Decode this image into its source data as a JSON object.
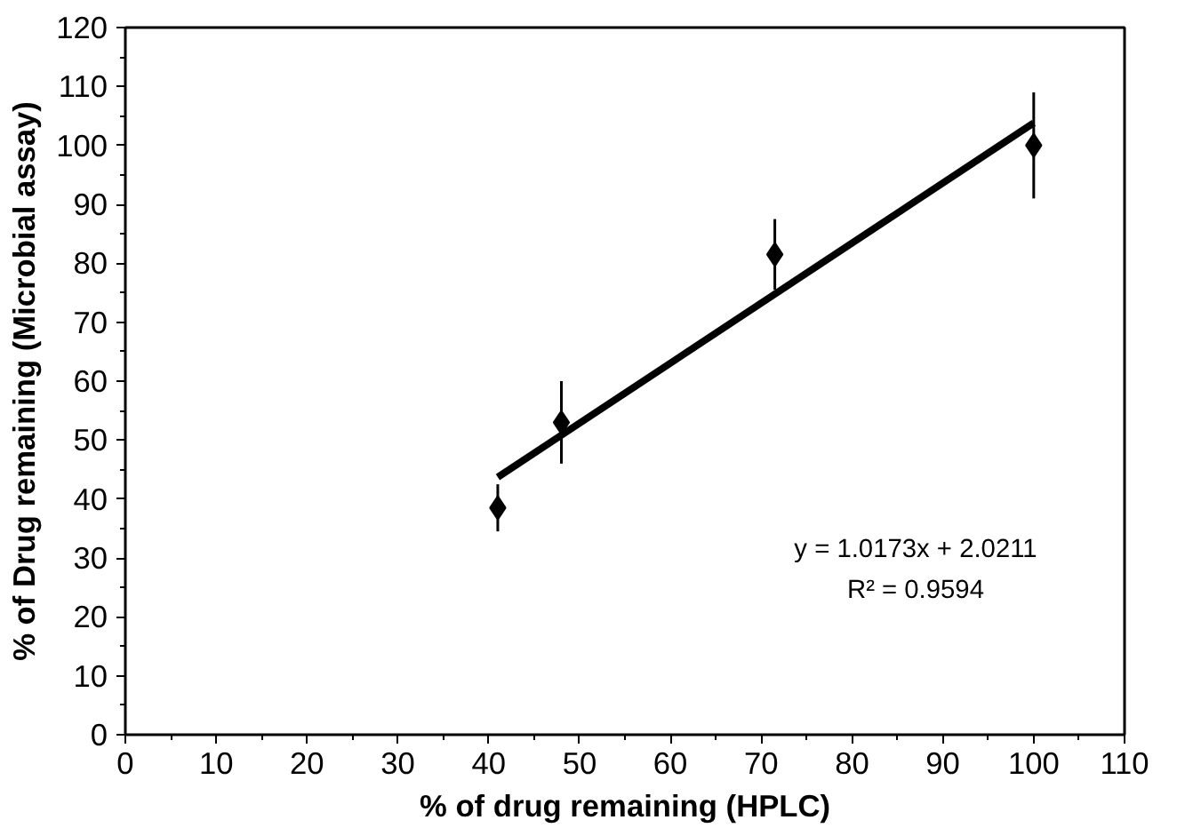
{
  "chart_data": {
    "type": "scatter",
    "xlabel": "% of drug remaining (HPLC)",
    "ylabel": "% of Drug remaining (Microbial assay)",
    "x": [
      41,
      48,
      71.5,
      100
    ],
    "series": [
      {
        "color": "#000000",
        "marker": "diamond",
        "values": [
          38.5,
          53,
          81.5,
          100
        ],
        "errors": [
          4,
          7,
          6,
          9
        ]
      },
      {
        "type": "line",
        "color": "#000000",
        "x": [
          41,
          100
        ],
        "values": [
          43.7,
          103.8
        ]
      }
    ],
    "annotations": [
      "y = 1.0173x + 2.0211",
      "R² = 0.9594"
    ],
    "xlim": [
      0,
      110
    ],
    "xticks": [
      0,
      10,
      20,
      30,
      40,
      50,
      60,
      70,
      80,
      90,
      100,
      110
    ],
    "ylim": [
      0,
      120
    ],
    "yticks": [
      0,
      10,
      20,
      30,
      40,
      50,
      60,
      70,
      80,
      90,
      100,
      110,
      120
    ],
    "grid": false
  }
}
